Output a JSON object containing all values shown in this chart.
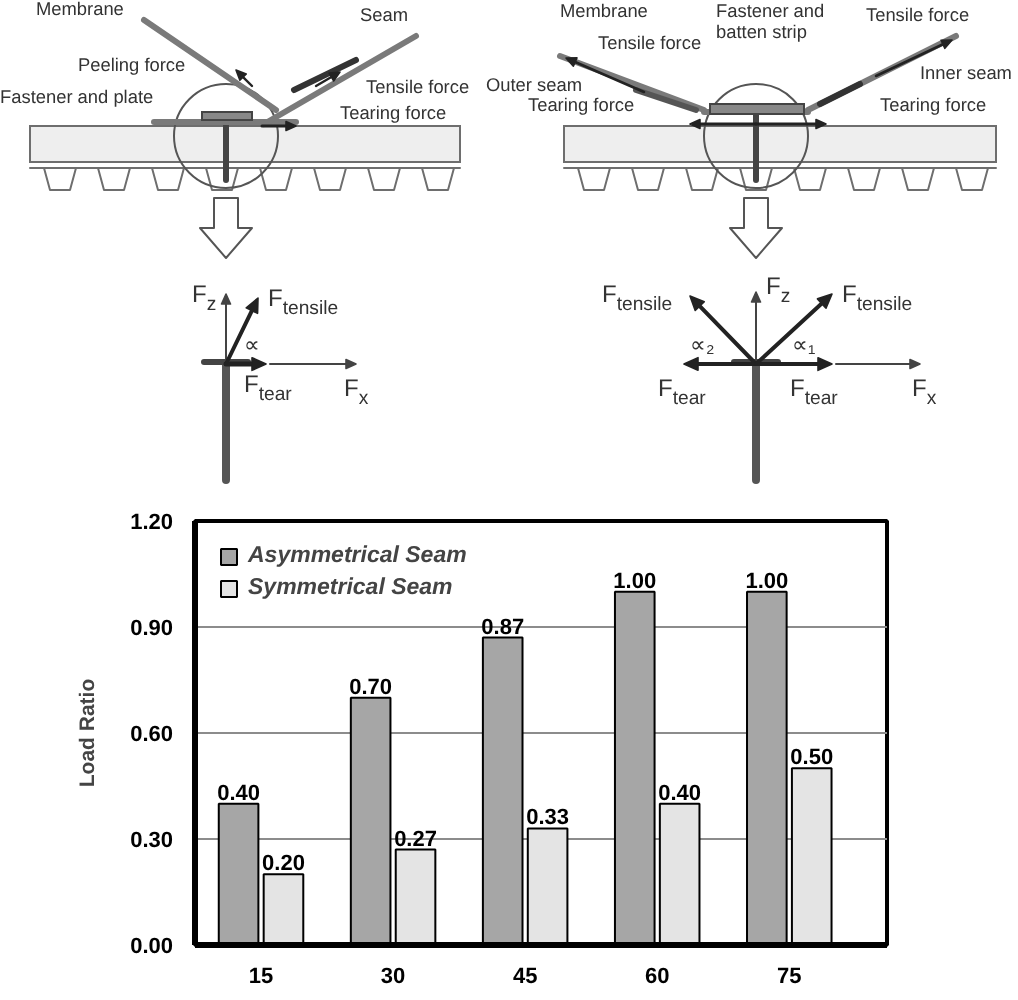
{
  "chart_data": {
    "type": "bar",
    "categories": [
      "15",
      "30",
      "45",
      "60",
      "75"
    ],
    "series": [
      {
        "name": "Asymmetrical Seam",
        "color": "#a6a6a6",
        "values": [
          0.4,
          0.7,
          0.87,
          1.0,
          1.0
        ],
        "value_labels": [
          "0.40",
          "0.70",
          "0.87",
          "1.00",
          "1.00"
        ]
      },
      {
        "name": "Symmetrical Seam",
        "color": "#e4e4e4",
        "values": [
          0.2,
          0.27,
          0.33,
          0.4,
          0.5
        ],
        "value_labels": [
          "0.20",
          "0.27",
          "0.33",
          "0.40",
          "0.50"
        ]
      }
    ],
    "ylabel": "Load Ratio",
    "ylim": [
      0,
      1.2
    ],
    "yticks": [
      {
        "value": 0,
        "label": "0.00"
      },
      {
        "value": 0.3,
        "label": "0.30"
      },
      {
        "value": 0.6,
        "label": "0.60"
      },
      {
        "value": 0.9,
        "label": "0.90"
      },
      {
        "value": 1.2,
        "label": "1.20"
      }
    ],
    "grid": "y",
    "legend": "top left",
    "annotations": [
      "Membrane",
      "Seam",
      "Peeling force",
      "Fastener and plate",
      "Tensile force",
      "Tearing force",
      "Membrane",
      "Fastener and\nbatten strip",
      "Tensile force",
      "Tensile force",
      "Outer seam",
      "Inner seam",
      "Tearing force",
      "Tearing force",
      "F$_{z}$",
      "F$_{tensile}$",
      "∝",
      "F$_{tear}$",
      "F$_{x}$",
      "F$_{tensile}$",
      "F$_{z}$",
      "F$_{tensile}$",
      "∝₂",
      "∝₁",
      "F$_{tear}$",
      "F$_{tear}$",
      "F$_{x}$"
    ]
  }
}
